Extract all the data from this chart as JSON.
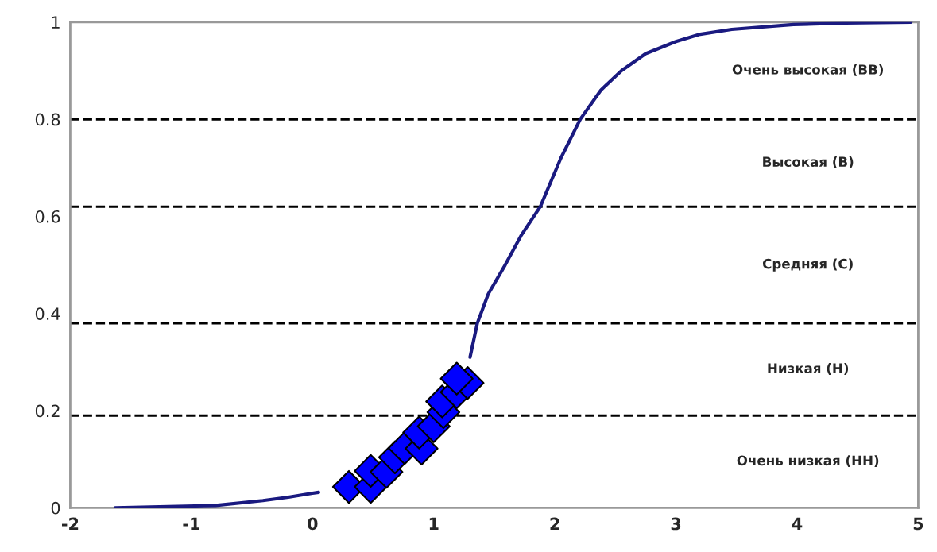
{
  "chart_data": {
    "type": "line",
    "series": [
      {
        "color": "#1a1a80",
        "marker": "none",
        "line_style": "solid",
        "x": [
          -1.63,
          -0.8,
          -0.41,
          -0.2,
          0,
          0.05,
          0.7,
          1.3,
          1.36,
          1.45,
          1.59,
          1.72,
          1.88,
          2.05,
          2.21,
          2.38,
          2.55,
          2.75,
          3.0,
          3.2,
          3.46,
          3.97,
          4.4,
          4.94
        ],
        "values": [
          0.0,
          0.005,
          0.015,
          0.022,
          0.03,
          0.032,
          null,
          0.31,
          0.38,
          0.44,
          0.5,
          0.56,
          0.62,
          0.72,
          0.8,
          0.86,
          0.9,
          0.935,
          0.96,
          0.975,
          0.985,
          0.995,
          0.998,
          1.0
        ]
      },
      {
        "type": "scatter",
        "color": "#0000ff",
        "marker": "diamond",
        "x": [
          0.3,
          0.48,
          0.48,
          0.61,
          0.68,
          0.76,
          0.9,
          0.88,
          1.0,
          1.08,
          1.07,
          1.19,
          1.28,
          1.19
        ],
        "values": [
          0.043,
          0.043,
          0.076,
          0.074,
          0.104,
          0.123,
          0.122,
          0.155,
          0.168,
          0.197,
          0.219,
          0.238,
          0.257,
          0.266
        ]
      }
    ],
    "xlim": [
      -2,
      5
    ],
    "xticks": [
      -2,
      -1,
      0,
      1,
      2,
      3,
      4,
      5
    ],
    "ylim": [
      0,
      1
    ],
    "yticks": [
      0,
      0.2,
      0.4,
      0.6,
      0.8,
      1
    ],
    "grid": false,
    "legend": false,
    "ref_lines": [
      {
        "axis": "y",
        "value": 0.8,
        "color": "#000000",
        "line_style": "dashed"
      },
      {
        "axis": "y",
        "value": 0.62,
        "color": "#000000",
        "line_style": "dashed"
      },
      {
        "axis": "y",
        "value": 0.38,
        "color": "#000000",
        "line_style": "dashed"
      },
      {
        "axis": "y",
        "value": 0.19,
        "color": "#000000",
        "line_style": "dashed"
      }
    ],
    "annotations": [
      "Очень высокая (ВВ)",
      "Высокая (В)",
      "Средняя (С)",
      "Низкая (Н)",
      "Очень низкая (НН)"
    ]
  }
}
